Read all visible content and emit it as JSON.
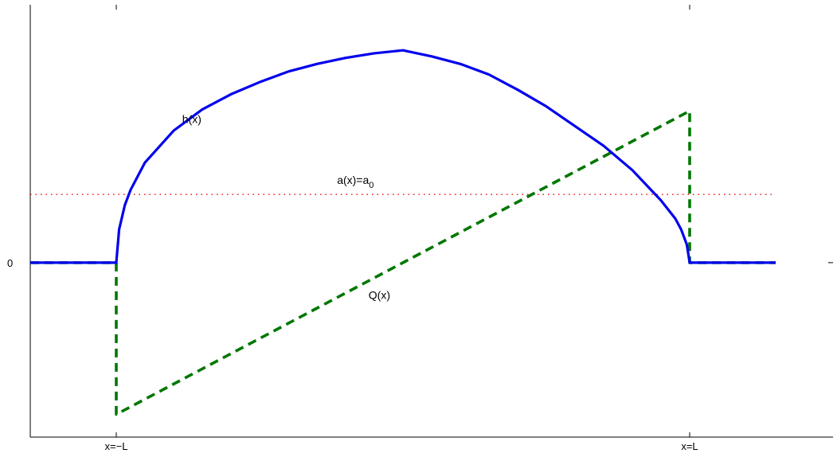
{
  "chart_data": {
    "type": "line",
    "title": "",
    "xlabel": "",
    "ylabel": "",
    "xlim": [
      -1.3,
      1.5
    ],
    "ylim": [
      -1.15,
      1.7
    ],
    "x_ticks": [
      {
        "value": -1,
        "label": "x=−L"
      },
      {
        "value": 1,
        "label": "x=L"
      }
    ],
    "y_ticks": [
      {
        "value": 0,
        "label": "0"
      }
    ],
    "grid": false,
    "legend": "none",
    "series": [
      {
        "key": "h",
        "style": "solid",
        "color": "#0000ee",
        "x": [
          -1.3,
          -1.0,
          -0.99,
          -0.97,
          -0.95,
          -0.9,
          -0.8,
          -0.7,
          -0.6,
          -0.5,
          -0.4,
          -0.3,
          -0.2,
          -0.1,
          0.0,
          0.1,
          0.2,
          0.3,
          0.4,
          0.5,
          0.6,
          0.7,
          0.8,
          0.9,
          0.95,
          0.97,
          0.99,
          1.0,
          1.3
        ],
        "y": [
          0,
          0,
          0.22,
          0.38,
          0.48,
          0.66,
          0.87,
          1.01,
          1.11,
          1.19,
          1.26,
          1.31,
          1.35,
          1.38,
          1.4,
          1.36,
          1.31,
          1.24,
          1.14,
          1.03,
          0.9,
          0.77,
          0.61,
          0.41,
          0.29,
          0.22,
          0.12,
          0,
          0
        ]
      },
      {
        "key": "Q",
        "style": "dashed",
        "color": "#007700",
        "x": [
          -1.3,
          -1.0,
          -1.0,
          1.0,
          1.0,
          1.3
        ],
        "y": [
          0,
          0,
          -1.0,
          1.0,
          0,
          0
        ]
      },
      {
        "key": "a",
        "style": "dotted",
        "color": "#ff0000",
        "x": [
          -1.3,
          1.3
        ],
        "y": [
          0.45,
          0.45
        ]
      }
    ],
    "annotations": [
      {
        "text": "h(x)",
        "x": -0.77,
        "y": 0.92
      },
      {
        "text": "a(x)=a",
        "sub": "0",
        "x": -0.23,
        "y": 0.52
      },
      {
        "text": "Q(x)",
        "x": -0.12,
        "y": -0.24
      }
    ]
  }
}
